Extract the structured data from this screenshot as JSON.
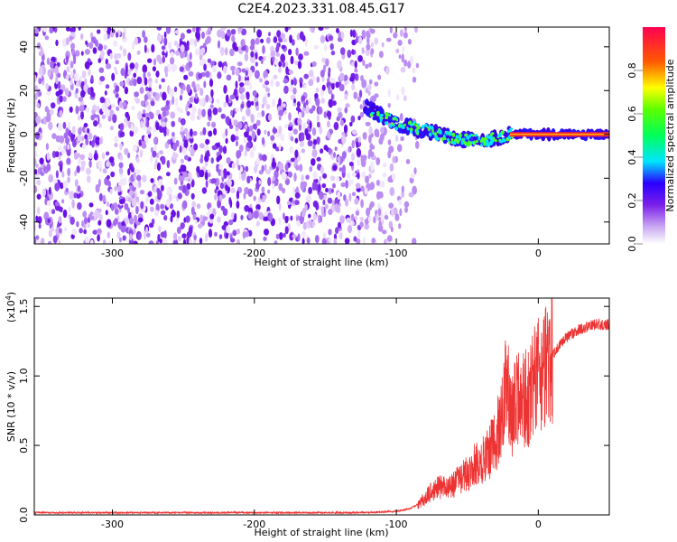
{
  "chart_data": [
    {
      "type": "heatmap",
      "title": "C2E4.2023.331.08.45.G17",
      "xlabel": "Height of straight line (km)",
      "ylabel": "Frequency (Hz)",
      "xlim": [
        -355,
        50
      ],
      "ylim": [
        -50,
        49
      ],
      "xticks": [
        -300,
        -200,
        -100,
        0
      ],
      "xtick_labels": [
        "-300",
        "-200",
        "-100",
        "0"
      ],
      "yticks": [
        -40,
        -20,
        0,
        20,
        40
      ],
      "ytick_labels": [
        "-40",
        "-20",
        "0",
        "20",
        "40"
      ],
      "colorbar": {
        "label": "Normalized spectral amplitude",
        "range": [
          0,
          1
        ],
        "ticks": [
          0,
          0.2,
          0.4,
          0.6,
          0.8
        ],
        "tick_labels": [
          "0.0",
          "0.2",
          "0.4",
          "0.6",
          "0.8"
        ]
      },
      "features": [
        {
          "name": "noise-field",
          "x_range": [
            -355,
            -85
          ],
          "freq_range": [
            -50,
            49
          ],
          "amplitude": 0.1
        },
        {
          "name": "signal-track",
          "points": [
            [
              -120,
              12
            ],
            [
              -100,
              5
            ],
            [
              -80,
              2
            ],
            [
              -60,
              -2
            ],
            [
              -40,
              -3
            ],
            [
              -20,
              0
            ],
            [
              0,
              0
            ],
            [
              50,
              0
            ]
          ],
          "amplitude": 0.8
        }
      ]
    },
    {
      "type": "line",
      "xlabel": "Height of straight line (km)",
      "ylabel": "SNR (10 * v/v)",
      "scale_label": "(x10",
      "scale_exp": "4",
      "scale_close": ")",
      "xlim": [
        -355,
        50
      ],
      "ylim": [
        0,
        1.56
      ],
      "xticks": [
        -300,
        -200,
        -100,
        0
      ],
      "xtick_labels": [
        "-300",
        "-200",
        "-100",
        "0"
      ],
      "yticks": [
        0.0,
        0.5,
        1.0,
        1.5
      ],
      "ytick_labels": [
        "0.0",
        "0.5",
        "1.0",
        "1.5"
      ],
      "color": "#ee3333",
      "series": [
        {
          "name": "SNR",
          "x": [
            -355,
            -300,
            -250,
            -200,
            -160,
            -140,
            -120,
            -100,
            -90,
            -85,
            -80,
            -75,
            -70,
            -65,
            -60,
            -55,
            -50,
            -45,
            -40,
            -35,
            -30,
            -25,
            -22,
            -20,
            -15,
            -10,
            -5,
            0,
            5,
            10,
            15,
            20,
            30,
            40,
            50
          ],
          "y": [
            0.01,
            0.01,
            0.01,
            0.01,
            0.01,
            0.01,
            0.01,
            0.02,
            0.04,
            0.07,
            0.12,
            0.17,
            0.2,
            0.2,
            0.22,
            0.26,
            0.3,
            0.36,
            0.4,
            0.44,
            0.55,
            0.72,
            1.0,
            0.68,
            0.8,
            0.85,
            0.9,
            0.98,
            1.06,
            1.15,
            1.22,
            1.28,
            1.34,
            1.37,
            1.37
          ]
        }
      ]
    }
  ]
}
